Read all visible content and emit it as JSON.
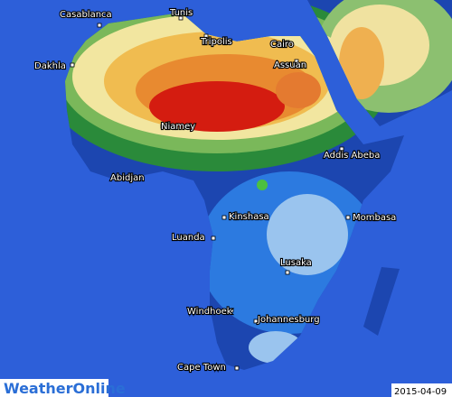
{
  "cities": [
    "Casablanca",
    "Tunis",
    "Tripolis",
    "Cairo",
    "Assuan",
    "Dakhla",
    "Niamey",
    "Addis Abeba",
    "Abidjan",
    "Kinshasa",
    "Mombasa",
    "Luanda",
    "Lusaka",
    "Windhoek",
    "Johannesburg",
    "Cape Town"
  ],
  "logo": "WeatherOnline",
  "date": "2015-04-09"
}
